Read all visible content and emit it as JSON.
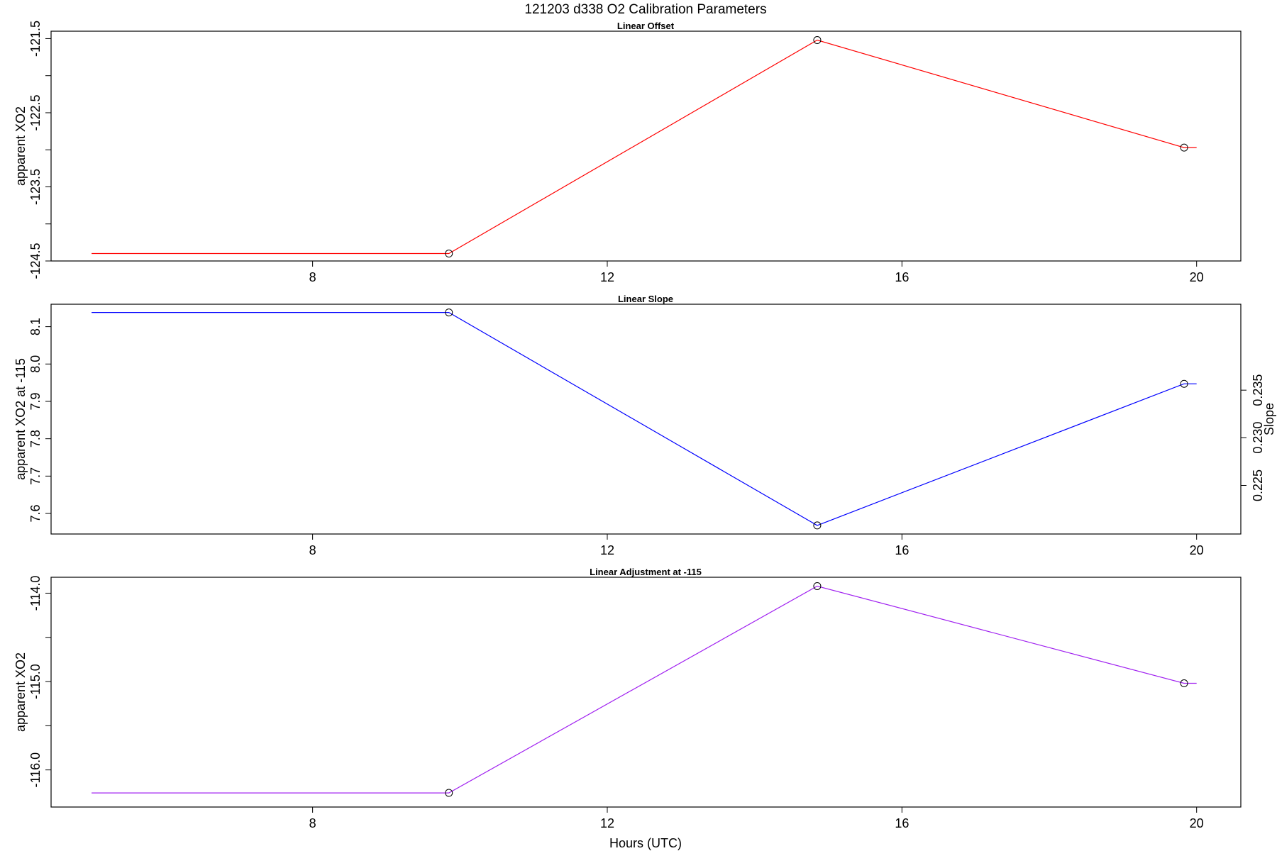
{
  "figure": {
    "title": "121203   d338   O2 Calibration Parameters",
    "xlabel": "Hours (UTC)"
  },
  "chart_data": [
    {
      "type": "line",
      "title": "Linear Offset",
      "xlabel": "",
      "ylabel": "apparent XO2",
      "xlim": [
        4.45,
        20.6
      ],
      "ylim": [
        -124.5,
        -121.4
      ],
      "xticks": [
        8,
        12,
        16,
        20
      ],
      "xtick_labels": [
        "8",
        "12",
        "16",
        "20"
      ],
      "yticks": [
        -124.5,
        -124.0,
        -123.5,
        -123.0,
        -122.5,
        -122.0,
        -121.5
      ],
      "ytick_labels": [
        "-124.5",
        "",
        "-123.5",
        "",
        "-122.5",
        "",
        "-121.5"
      ],
      "series": [
        {
          "color": "#ff0000",
          "x": [
            5.0,
            9.85,
            14.85,
            19.83,
            20.0
          ],
          "y": [
            -124.4,
            -124.4,
            -121.52,
            -122.97,
            -122.97
          ],
          "markers": [
            false,
            true,
            true,
            true,
            false
          ]
        }
      ]
    },
    {
      "type": "line",
      "title": "Linear Slope",
      "xlabel": "",
      "ylabel": "apparent XO2 at -115",
      "ylabel_right": "Slope",
      "xlim": [
        4.45,
        20.6
      ],
      "ylim": [
        7.545,
        8.16
      ],
      "xticks": [
        8,
        12,
        16,
        20
      ],
      "xtick_labels": [
        "8",
        "12",
        "16",
        "20"
      ],
      "yticks": [
        7.6,
        7.7,
        7.8,
        7.9,
        8.0,
        8.1
      ],
      "ytick_labels": [
        "7.6",
        "7.7",
        "7.8",
        "7.9",
        "8.0",
        "8.1"
      ],
      "yticks_right_values": [
        0.225,
        0.23,
        0.235
      ],
      "yticks_right_labels": [
        "0.225",
        "0.230",
        "0.235"
      ],
      "yticks_right_positions": [
        7.675,
        7.803,
        7.93
      ],
      "series": [
        {
          "color": "#0000ff",
          "x": [
            5.0,
            9.85,
            14.85,
            19.83,
            20.0
          ],
          "y": [
            8.138,
            8.138,
            7.568,
            7.947,
            7.947
          ],
          "markers": [
            false,
            true,
            true,
            true,
            false
          ]
        }
      ]
    },
    {
      "type": "line",
      "title": "Linear Adjustment at -115",
      "xlabel": "Hours (UTC)",
      "ylabel": "apparent XO2",
      "xlim": [
        4.45,
        20.6
      ],
      "ylim": [
        -116.42,
        -113.82
      ],
      "xticks": [
        8,
        12,
        16,
        20
      ],
      "xtick_labels": [
        "8",
        "12",
        "16",
        "20"
      ],
      "yticks": [
        -116.0,
        -115.5,
        -115.0,
        -114.5,
        -114.0
      ],
      "ytick_labels": [
        "-116.0",
        "",
        "-115.0",
        "",
        "-114.0"
      ],
      "series": [
        {
          "color": "#a020f0",
          "x": [
            5.0,
            9.85,
            14.85,
            19.83,
            20.0
          ],
          "y": [
            -116.26,
            -116.26,
            -113.92,
            -115.02,
            -115.02
          ],
          "markers": [
            false,
            true,
            true,
            true,
            false
          ]
        }
      ]
    }
  ]
}
